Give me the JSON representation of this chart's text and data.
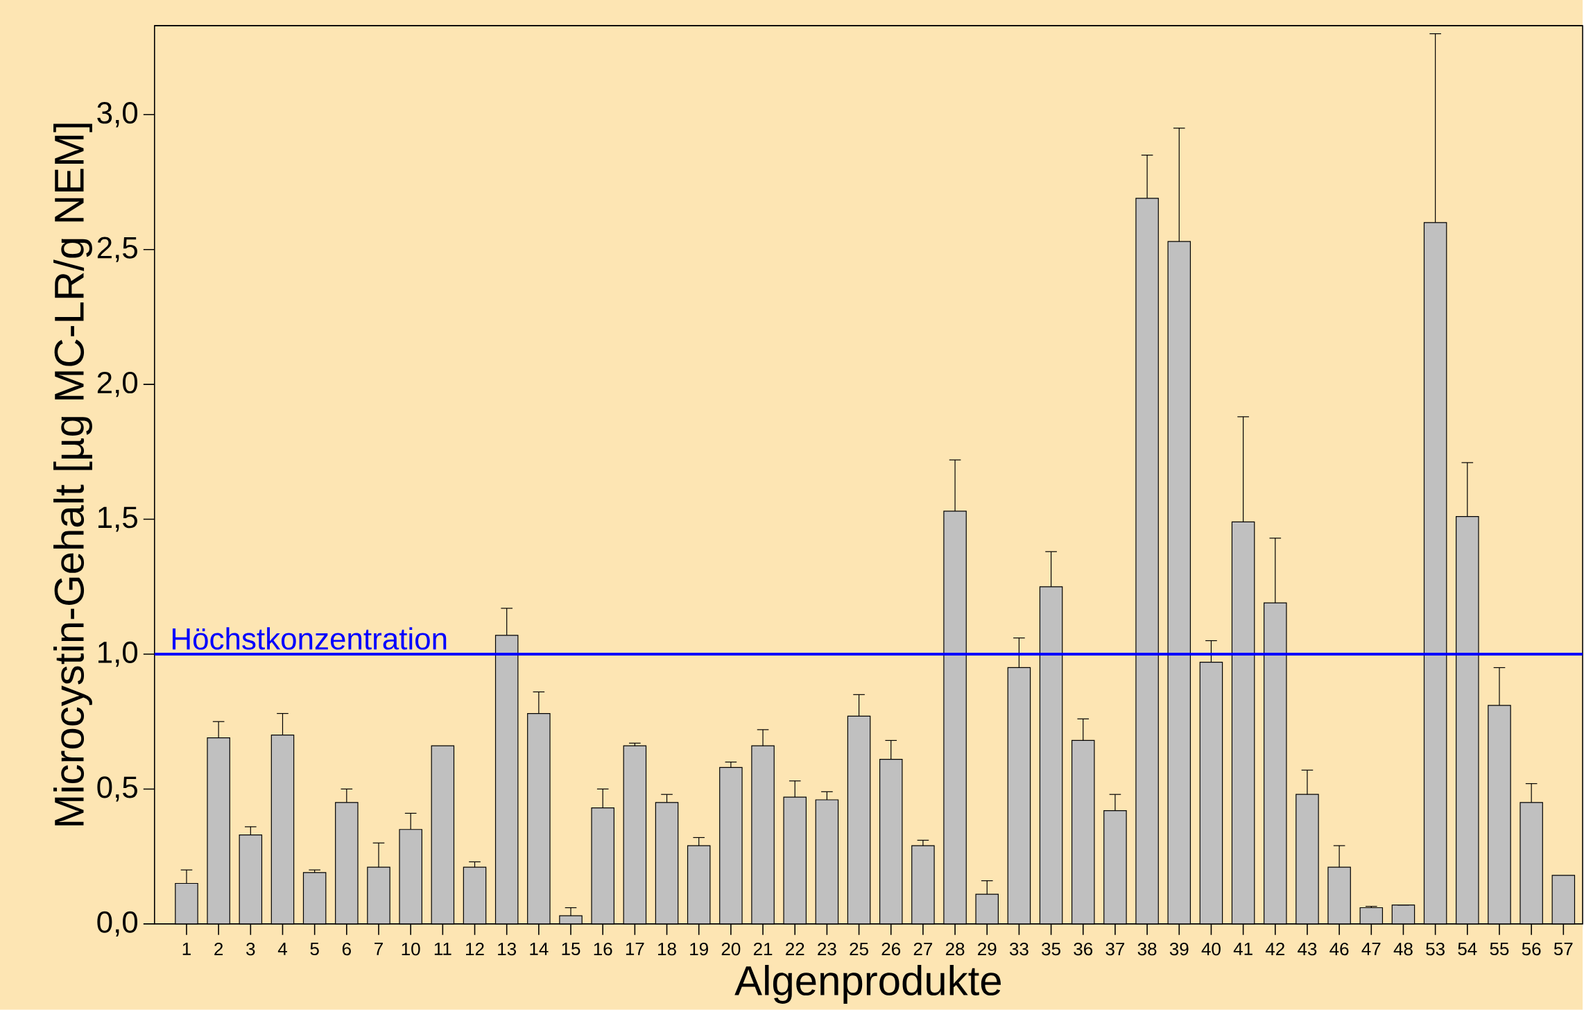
{
  "chart_data": {
    "type": "bar",
    "xlabel": "Algenprodukte",
    "ylabel": "Microcystin-Gehalt [µg MC-LR/g NEM]",
    "categories": [
      "1",
      "2",
      "3",
      "4",
      "5",
      "6",
      "7",
      "10",
      "11",
      "12",
      "13",
      "14",
      "15",
      "16",
      "17",
      "18",
      "19",
      "20",
      "21",
      "22",
      "23",
      "25",
      "26",
      "27",
      "28",
      "29",
      "33",
      "35",
      "36",
      "37",
      "38",
      "39",
      "40",
      "41",
      "42",
      "43",
      "46",
      "47",
      "48",
      "53",
      "54",
      "55",
      "56",
      "57"
    ],
    "values": [
      0.15,
      0.69,
      0.33,
      0.7,
      0.19,
      0.45,
      0.21,
      0.35,
      0.66,
      0.21,
      1.07,
      0.78,
      0.03,
      0.43,
      0.66,
      0.45,
      0.29,
      0.58,
      0.66,
      0.47,
      0.46,
      0.77,
      0.61,
      0.29,
      1.53,
      0.11,
      0.95,
      1.25,
      0.68,
      0.42,
      2.69,
      2.53,
      0.97,
      1.49,
      1.19,
      0.48,
      0.21,
      0.06,
      0.07,
      2.6,
      1.51,
      0.81,
      0.45,
      0.18
    ],
    "errors": [
      [
        0.15,
        0.2
      ],
      [
        0.69,
        0.75
      ],
      [
        0.33,
        0.36
      ],
      [
        0.7,
        0.78
      ],
      [
        0.19,
        0.2
      ],
      [
        0.45,
        0.5
      ],
      [
        0.21,
        0.3
      ],
      [
        0.35,
        0.41
      ],
      null,
      [
        0.21,
        0.23
      ],
      [
        1.07,
        1.17
      ],
      [
        0.78,
        0.86
      ],
      [
        0.03,
        0.06
      ],
      [
        0.43,
        0.5
      ],
      [
        0.66,
        0.67
      ],
      [
        0.45,
        0.48
      ],
      [
        0.29,
        0.32
      ],
      [
        0.58,
        0.6
      ],
      [
        0.66,
        0.72
      ],
      [
        0.47,
        0.53
      ],
      [
        0.46,
        0.49
      ],
      [
        0.77,
        0.85
      ],
      [
        0.61,
        0.68
      ],
      [
        0.29,
        0.31
      ],
      [
        1.53,
        1.72
      ],
      [
        0.11,
        0.16
      ],
      [
        0.95,
        1.06
      ],
      [
        1.25,
        1.38
      ],
      [
        0.68,
        0.76
      ],
      [
        0.42,
        0.48
      ],
      [
        2.69,
        2.85
      ],
      [
        2.53,
        2.95
      ],
      [
        0.97,
        1.05
      ],
      [
        1.49,
        1.88
      ],
      [
        1.19,
        1.43
      ],
      [
        0.48,
        0.57
      ],
      [
        0.21,
        0.29
      ],
      [
        0.06,
        0.065
      ],
      [
        0.07,
        0.07
      ],
      [
        2.6,
        3.3
      ],
      [
        1.51,
        1.71
      ],
      [
        0.81,
        0.95
      ],
      [
        0.45,
        0.52
      ],
      null
    ],
    "color": "#c0c0c0",
    "ylim": [
      0,
      3.33
    ],
    "yticks": [
      {
        "value": 0,
        "label": "0,0"
      },
      {
        "value": 0.5,
        "label": "0,5"
      },
      {
        "value": 1,
        "label": "1,0"
      },
      {
        "value": 1.5,
        "label": "1,5"
      },
      {
        "value": 2,
        "label": "2,0"
      },
      {
        "value": 2.5,
        "label": "2,5"
      },
      {
        "value": 3,
        "label": "3,0"
      }
    ],
    "ref_lines": [
      {
        "axis": "y",
        "value": 1.0,
        "label": "Höchstkonzentration",
        "color": "#0000ff"
      }
    ],
    "grid": false
  }
}
